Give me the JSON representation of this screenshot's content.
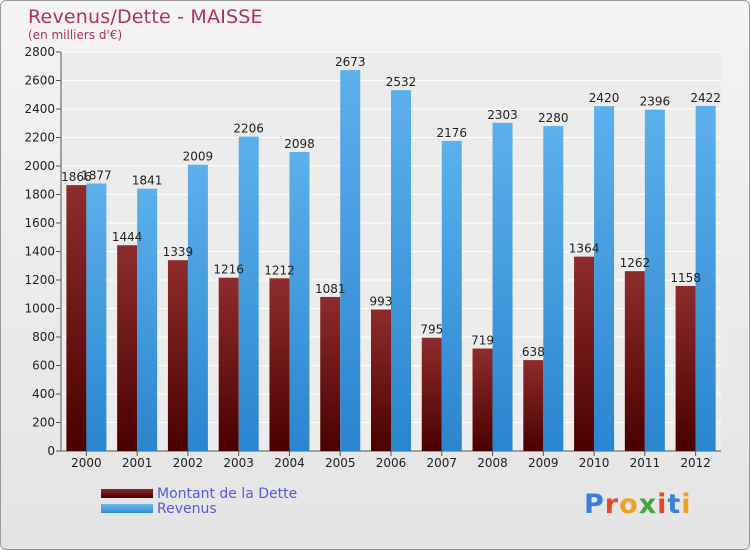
{
  "header": {
    "title": "Revenus/Dette - MAISSE",
    "subtitle": "(en milliers d'€)"
  },
  "legend": {
    "debt_label": "Montant de la Dette",
    "revenue_label": "Revenus"
  },
  "logo": {
    "text": "Proxiti",
    "colors": [
      "#3a7fd8",
      "#e8452e",
      "#f0a020",
      "#3fa83a",
      "#e8452e",
      "#3a7fd8",
      "#f0a020"
    ]
  },
  "colors": {
    "debt": "#6b1212",
    "revenue": "#4aa3e8",
    "title": "#b03060"
  },
  "chart_data": {
    "type": "bar",
    "categories": [
      "2000",
      "2001",
      "2002",
      "2003",
      "2004",
      "2005",
      "2006",
      "2007",
      "2008",
      "2009",
      "2010",
      "2011",
      "2012"
    ],
    "series": [
      {
        "name": "Montant de la Dette",
        "values": [
          1866,
          1444,
          1339,
          1216,
          1212,
          1081,
          993,
          795,
          719,
          638,
          1364,
          1262,
          1158
        ]
      },
      {
        "name": "Revenus",
        "values": [
          1877,
          1841,
          2009,
          2206,
          2098,
          2673,
          2532,
          2176,
          2303,
          2280,
          2420,
          2396,
          2422
        ]
      }
    ],
    "ylim": [
      0,
      2800
    ],
    "yticks": [
      0,
      200,
      400,
      600,
      800,
      1000,
      1200,
      1400,
      1600,
      1800,
      2000,
      2200,
      2400,
      2600,
      2800
    ],
    "grid": true,
    "legend_position": "bottom-left"
  }
}
